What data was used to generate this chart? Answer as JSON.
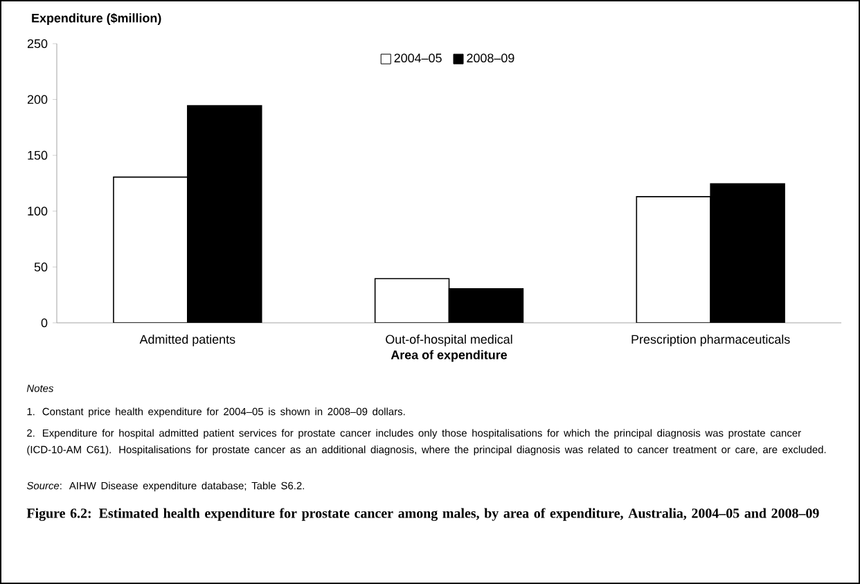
{
  "chart_data": {
    "type": "bar",
    "title": "Figure 6.2: Estimated health expenditure for prostate cancer among males, by area of expenditure, Australia, 2004–05 and 2008–09",
    "ylabel": "Expenditure ($million)",
    "xlabel": "Area of expenditure",
    "categories": [
      "Admitted patients",
      "Out-of-hospital medical",
      "Prescription pharmaceuticals"
    ],
    "series": [
      {
        "name": "2004–05",
        "color": "#ffffff",
        "values": [
          130.5,
          39.5,
          113
        ]
      },
      {
        "name": "2008–09",
        "color": "#000000",
        "values": [
          194.5,
          30.5,
          124.5
        ]
      }
    ],
    "ylim": [
      0,
      250
    ],
    "yticks": [
      0,
      50,
      100,
      150,
      200,
      250
    ],
    "legend": "top",
    "annotations": [
      "*Notes*",
      "1. Constant price health expenditure for 2004–05 is shown in 2008–09 dollars.",
      "2. Expenditure for hospital admitted patient services for prostate cancer includes only those hospitalisations for which the principal diagnosis was prostate cancer (ICD-10-AM C61). Hospitalisations for prostate cancer as an additional diagnosis, where the principal diagnosis was related to cancer treatment or care, are excluded.",
      "*Source*: AIHW Disease expenditure database; Table S6.2."
    ]
  }
}
